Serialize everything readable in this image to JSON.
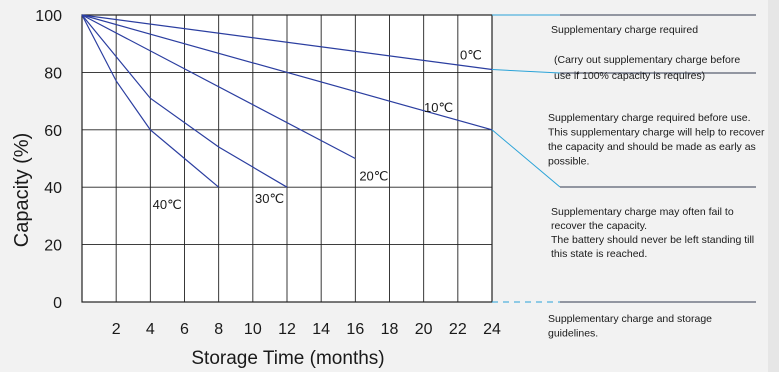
{
  "chart_data": {
    "type": "line",
    "xlabel": "Storage Time (months)",
    "ylabel": "Capacity  (%)",
    "xlim": [
      0,
      24
    ],
    "ylim": [
      0,
      100
    ],
    "x_ticks": [
      2,
      4,
      6,
      8,
      10,
      12,
      14,
      16,
      18,
      20,
      22,
      24
    ],
    "y_ticks": [
      0,
      20,
      40,
      60,
      80,
      100
    ],
    "grid": true,
    "series": [
      {
        "name": "0℃",
        "x": [
          0,
          24
        ],
        "y": [
          100,
          81
        ]
      },
      {
        "name": "10℃",
        "x": [
          0,
          24
        ],
        "y": [
          100,
          60
        ]
      },
      {
        "name": "20℃",
        "x": [
          0,
          16
        ],
        "y": [
          100,
          50
        ]
      },
      {
        "name": "30℃",
        "x": [
          0,
          4,
          8,
          12
        ],
        "y": [
          100,
          71,
          54,
          40
        ]
      },
      {
        "name": "40℃",
        "x": [
          0,
          2,
          4,
          6,
          8
        ],
        "y": [
          100,
          77,
          60,
          50,
          40
        ]
      }
    ],
    "annotations": [
      {
        "lines": [
          "Supplementary charge required"
        ]
      },
      {
        "lines": [
          "(Carry out supplementary charge before",
          "use if 100% capacity is requires)"
        ]
      },
      {
        "lines": [
          "Supplementary charge required before use.",
          "This supplementary charge will help to recover",
          "the capacity and should be made  as early as",
          "possible."
        ]
      },
      {
        "lines": [
          "Supplementary charge may often fail to",
          "recover the capacity.",
          "The battery should never be left  standing till",
          "this state is reached."
        ]
      },
      {
        "lines": [
          "Supplementary charge and storage",
          "guidelines."
        ]
      }
    ]
  },
  "colors": {
    "line": "#2b3ea0",
    "grid": "#222222",
    "accent": "#2aa3d8",
    "text": "#1a1a1a",
    "background": "#f2f2f2"
  }
}
